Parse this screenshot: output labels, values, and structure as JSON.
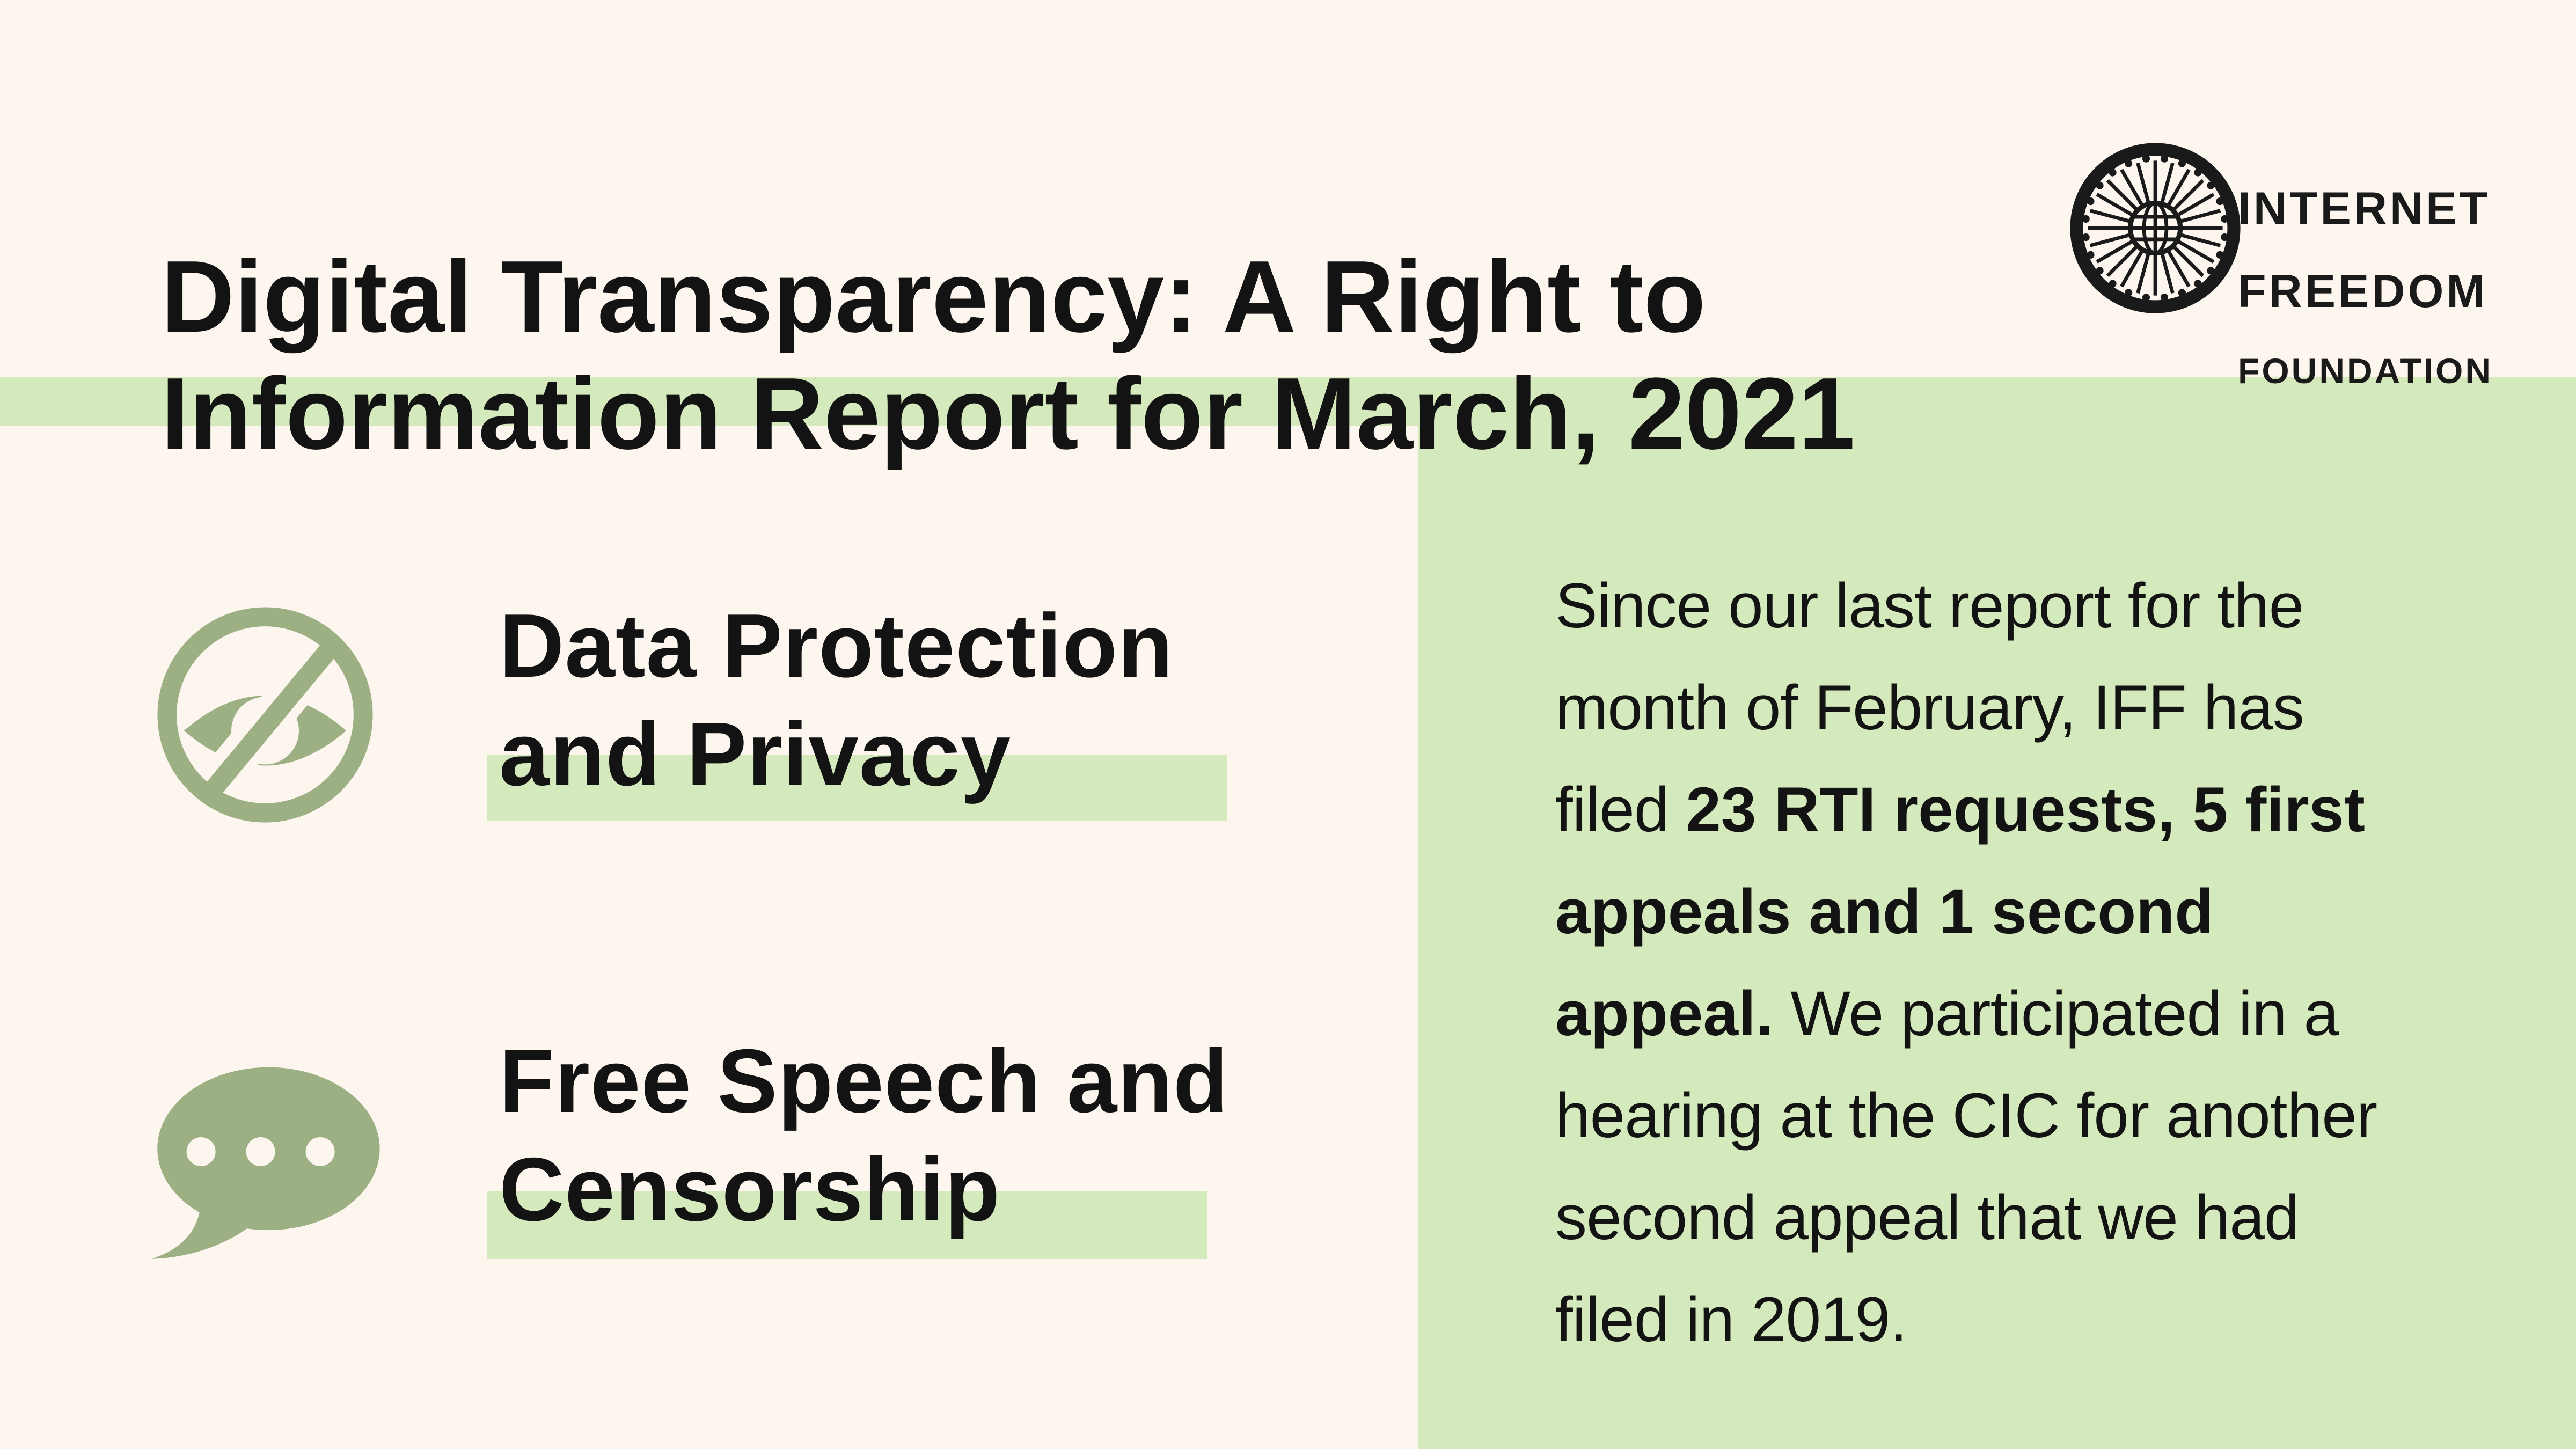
{
  "page": {
    "background_color": "#FCF6EF",
    "accent_green": "#D4EABC",
    "icon_sage_green": "#9CB083",
    "text_color": "#131313"
  },
  "header": {
    "title_line1": "Digital Transparency: A Right to",
    "title_line2": "Information Report for March, 2021"
  },
  "logo": {
    "wheel_icon": "chakra-globe-wheel-icon",
    "line1": "INTERNET",
    "line2": "FREEDOM",
    "line3": "FOUNDATION"
  },
  "topics": [
    {
      "icon": "eye-slash-icon",
      "line1": "Data Protection",
      "line2": "and Privacy"
    },
    {
      "icon": "speech-bubble-icon",
      "line1": "Free Speech and",
      "line2": "Censorship"
    }
  ],
  "panel": {
    "line1": "Since our last report for the",
    "line2": "month of February, IFF has",
    "line3_pre": "filed ",
    "line3_bold": "23 RTI requests, 5 first",
    "line4_bold": "appeals and 1 second",
    "line5_bold": "appeal.",
    "line5_post": " We participated in a",
    "line6": "hearing at the CIC for another",
    "line7": "second appeal that we had",
    "line8": "filed in 2019."
  }
}
